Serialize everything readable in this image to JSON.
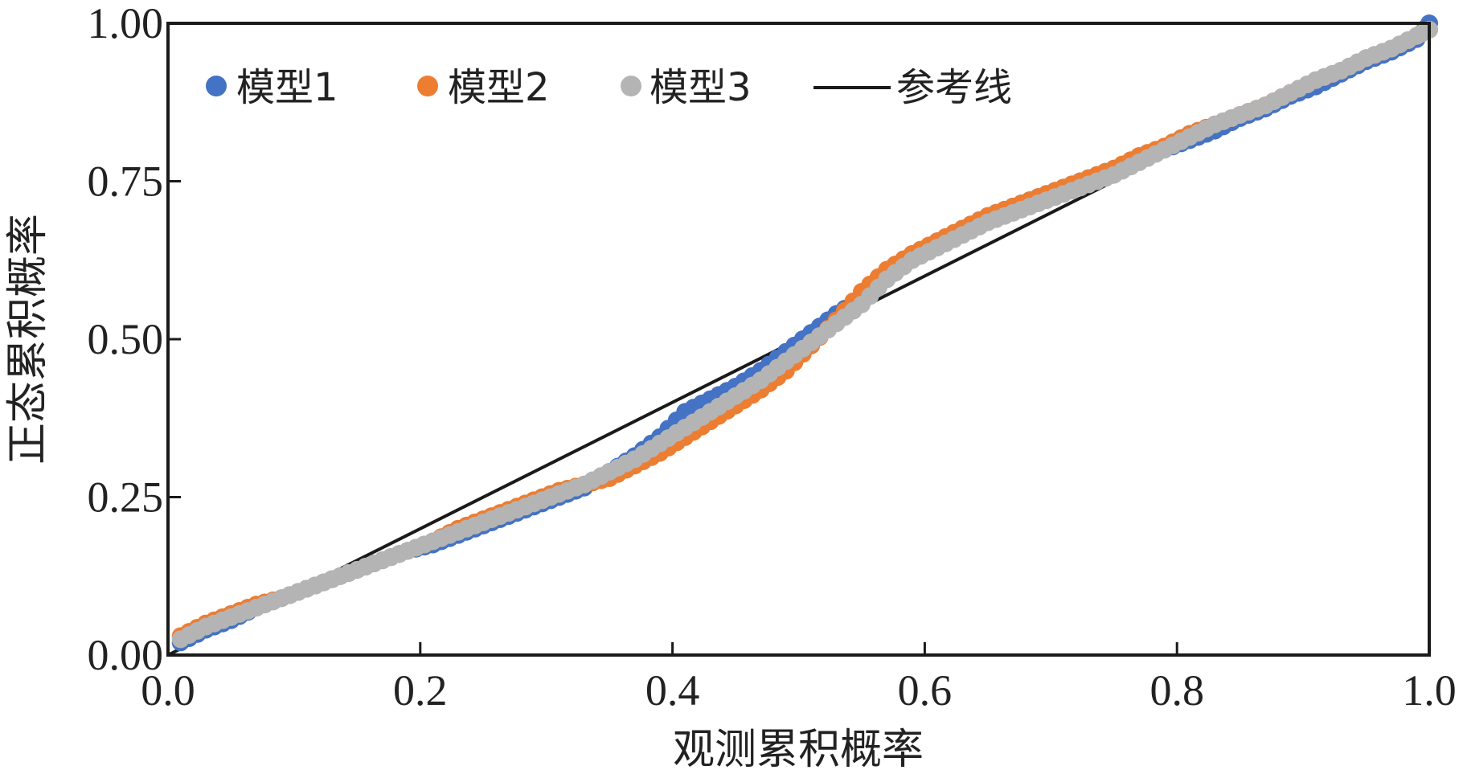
{
  "chart_data": {
    "type": "scatter",
    "title": "",
    "xlabel": "观测累积概率",
    "ylabel": "正态累积概率",
    "xlim": [
      0,
      1
    ],
    "ylim": [
      0,
      1
    ],
    "xticks": [
      "0.0",
      "0.2",
      "0.4",
      "0.6",
      "0.8",
      "1.0"
    ],
    "xtick_values": [
      0,
      0.2,
      0.4,
      0.6,
      0.8,
      1.0
    ],
    "yticks": [
      "0.00",
      "0.25",
      "0.50",
      "0.75",
      "1.00"
    ],
    "ytick_values": [
      0,
      0.25,
      0.5,
      0.75,
      1.0
    ],
    "grid": false,
    "legend_position": "top-left",
    "x": [
      0.01,
      0.03,
      0.05,
      0.07,
      0.09,
      0.11,
      0.13,
      0.15,
      0.17,
      0.19,
      0.21,
      0.23,
      0.25,
      0.27,
      0.29,
      0.31,
      0.33,
      0.35,
      0.37,
      0.39,
      0.41,
      0.43,
      0.45,
      0.47,
      0.49,
      0.51,
      0.53,
      0.55,
      0.57,
      0.59,
      0.61,
      0.63,
      0.65,
      0.67,
      0.69,
      0.71,
      0.73,
      0.75,
      0.77,
      0.79,
      0.81,
      0.83,
      0.85,
      0.87,
      0.89,
      0.91,
      0.93,
      0.95,
      0.97,
      0.99,
      1.0
    ],
    "series": [
      {
        "name": "模型1",
        "color": "#4472C4",
        "values": [
          0.02,
          0.04,
          0.055,
          0.075,
          0.09,
          0.105,
          0.12,
          0.135,
          0.15,
          0.165,
          0.175,
          0.19,
          0.205,
          0.22,
          0.235,
          0.25,
          0.265,
          0.29,
          0.315,
          0.345,
          0.385,
          0.405,
          0.425,
          0.45,
          0.48,
          0.51,
          0.54,
          0.565,
          0.595,
          0.63,
          0.655,
          0.675,
          0.695,
          0.71,
          0.725,
          0.74,
          0.755,
          0.77,
          0.785,
          0.8,
          0.815,
          0.83,
          0.85,
          0.865,
          0.885,
          0.9,
          0.92,
          0.94,
          0.955,
          0.975,
          1.0
        ]
      },
      {
        "name": "模型2",
        "color": "#ED7D31",
        "values": [
          0.03,
          0.05,
          0.065,
          0.08,
          0.09,
          0.105,
          0.12,
          0.135,
          0.15,
          0.165,
          0.18,
          0.2,
          0.215,
          0.23,
          0.245,
          0.26,
          0.27,
          0.28,
          0.3,
          0.32,
          0.345,
          0.37,
          0.395,
          0.42,
          0.45,
          0.49,
          0.53,
          0.575,
          0.61,
          0.635,
          0.655,
          0.675,
          0.695,
          0.71,
          0.725,
          0.74,
          0.755,
          0.77,
          0.79,
          0.805,
          0.825,
          0.84,
          0.855,
          0.87,
          0.89,
          0.91,
          0.925,
          0.945,
          0.96,
          0.98,
          0.99
        ]
      },
      {
        "name": "模型3",
        "color": "#B4B4B4",
        "values": [
          0.025,
          0.045,
          0.06,
          0.075,
          0.09,
          0.105,
          0.12,
          0.135,
          0.15,
          0.165,
          0.18,
          0.195,
          0.21,
          0.225,
          0.24,
          0.255,
          0.27,
          0.29,
          0.31,
          0.335,
          0.36,
          0.385,
          0.41,
          0.435,
          0.465,
          0.495,
          0.525,
          0.555,
          0.595,
          0.625,
          0.645,
          0.665,
          0.685,
          0.7,
          0.715,
          0.73,
          0.745,
          0.76,
          0.78,
          0.8,
          0.82,
          0.84,
          0.855,
          0.87,
          0.89,
          0.91,
          0.925,
          0.945,
          0.96,
          0.98,
          0.99
        ]
      }
    ],
    "reference_line": {
      "name": "参考线",
      "color": "#1a1a1a",
      "from": [
        0,
        0
      ],
      "to": [
        1,
        1
      ]
    }
  }
}
